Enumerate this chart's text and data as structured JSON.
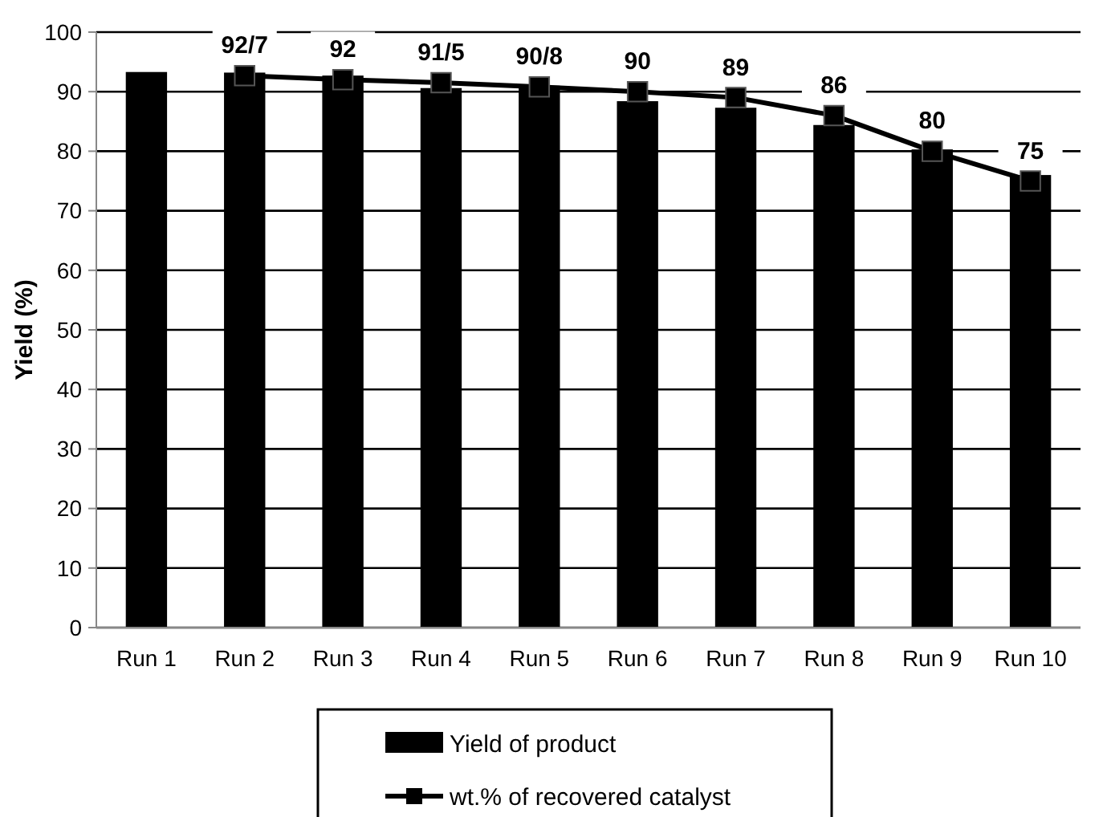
{
  "chart_data": {
    "type": "bar",
    "ylabel": "Yield (%)",
    "categories": [
      "Run 1",
      "Run 2",
      "Run 3",
      "Run 4",
      "Run 5",
      "Run 6",
      "Run 7",
      "Run 8",
      "Run 9",
      "Run 10"
    ],
    "series": [
      {
        "name": "Yield of product",
        "color": "#000000",
        "values": [
          93.3,
          93.2,
          92.7,
          90.6,
          91,
          88.4,
          87.3,
          84.4,
          80.3,
          76
        ]
      },
      {
        "name": "wt.% of recovered catalyst",
        "type": "line",
        "color": "#000000",
        "marker": "square",
        "values": [
          null,
          92.7,
          92,
          91.5,
          90.8,
          90,
          89,
          86,
          80,
          75
        ],
        "value_labels": [
          null,
          "92/7",
          "92",
          "91/5",
          "90/8",
          "90",
          "89",
          "86",
          "80",
          "75"
        ]
      }
    ],
    "ylim": [
      0,
      100
    ],
    "yticks": [
      0,
      10,
      20,
      30,
      40,
      50,
      60,
      70,
      80,
      90,
      100
    ],
    "grid": "y",
    "legend": "bottom"
  }
}
